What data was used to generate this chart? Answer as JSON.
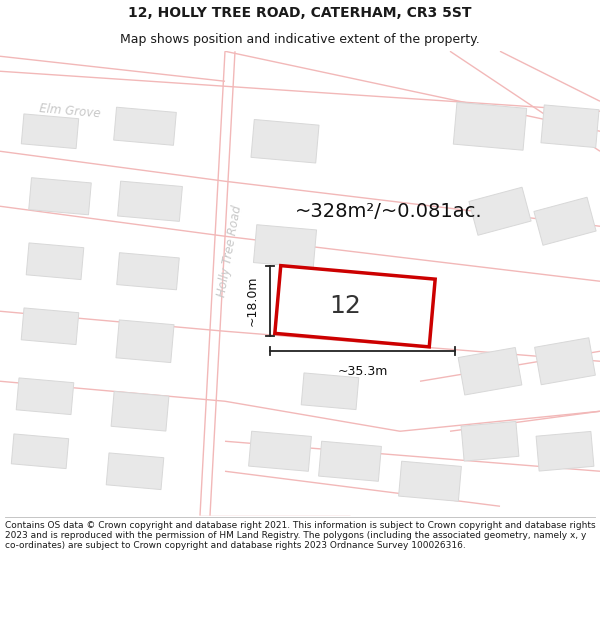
{
  "title_line1": "12, HOLLY TREE ROAD, CATERHAM, CR3 5ST",
  "title_line2": "Map shows position and indicative extent of the property.",
  "area_text": "~328m²/~0.081ac.",
  "property_number": "12",
  "width_label": "~35.3m",
  "height_label": "~18.0m",
  "road_label": "Holly Tree Road",
  "street_label": "Elm Grove",
  "footer_text": "Contains OS data © Crown copyright and database right 2021. This information is subject to Crown copyright and database rights 2023 and is reproduced with the permission of HM Land Registry. The polygons (including the associated geometry, namely x, y co-ordinates) are subject to Crown copyright and database rights 2023 Ordnance Survey 100026316.",
  "bg_color": "#ffffff",
  "map_bg": "#ffffff",
  "road_color": "#f2b8b8",
  "building_color": "#e8e8e8",
  "building_edge": "#d8d8d8",
  "property_fill": "#ffffff",
  "property_edge": "#cc0000",
  "title_color": "#1a1a1a",
  "footer_color": "#1a1a1a",
  "dim_arrow_color": "#222222",
  "road_label_color": "#c8c8c8",
  "title_fontsize": 10,
  "subtitle_fontsize": 9,
  "footer_fontsize": 6.5,
  "area_fontsize": 14,
  "number_fontsize": 18,
  "dim_fontsize": 9,
  "road_label_fontsize": 8.5
}
